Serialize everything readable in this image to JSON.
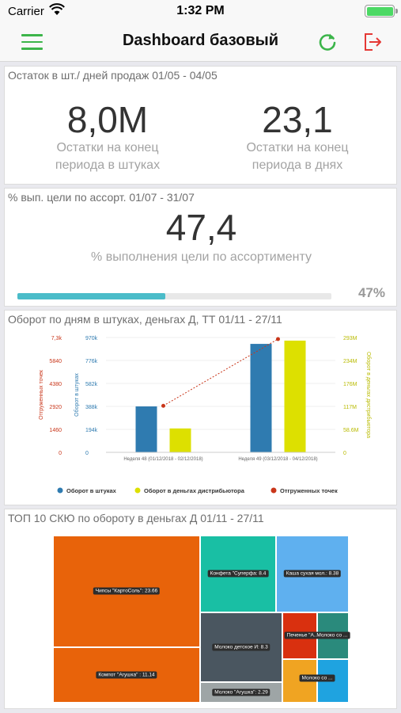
{
  "status": {
    "carrier": "Carrier",
    "time": "1:32 PM"
  },
  "nav": {
    "title": "Dashboard базовый",
    "menu_icon": "hamburger-menu-icon",
    "refresh_icon": "refresh-icon",
    "logout_icon": "logout-icon",
    "accent": "#3cb54a",
    "logout_color": "#e53935"
  },
  "stock": {
    "title": "Остаток в шт./ дней продаж 01/05 - 04/05",
    "left_value": "8,0M",
    "left_label_1": "Остатки на конец",
    "left_label_2": "периода в штуках",
    "right_value": "23,1",
    "right_label_1": "Остатки на конец",
    "right_label_2": "периода в днях"
  },
  "assort": {
    "title": "% вып. цели по ассорт. 01/07 - 31/07",
    "value": "47,4",
    "label": "% выполнения цели по ассортименту",
    "progress": 0.47,
    "progress_text": "47%",
    "bar_color": "#4bbcc9"
  },
  "turnover": {
    "title": "Оборот по дням в штуках, деньгах Д, ТТ 01/11 - 27/11",
    "left_axis_ticks": [
      "7,3k",
      "5840",
      "4380",
      "2920",
      "1460",
      "0"
    ],
    "left_axis_title": "Отгруженных точек",
    "mid_axis_ticks": [
      "970k",
      "776k",
      "582k",
      "388k",
      "194k",
      "0"
    ],
    "mid_axis_title": "Оборот в штуках",
    "right_axis_ticks": [
      "293M",
      "234M",
      "176M",
      "117M",
      "58.6M",
      "0"
    ],
    "right_axis_title": "Оборот в деньгах дистрибьютора",
    "legend": {
      "units": "Оборот в штуках",
      "money": "Оборот в деньгах дистрибьютора",
      "points": "Отгруженных точек"
    },
    "colors": {
      "units": "#2f7bb0",
      "money": "#dde000",
      "points": "#c9361a"
    }
  },
  "chart_data": {
    "type": "bar",
    "categories": [
      "Неделя 48 (01/12/2018 - 02/12/2018)",
      "Неделя 49 (03/12/2018 - 04/12/2018)"
    ],
    "series": [
      {
        "name": "Оборот в штуках",
        "axis": "mid",
        "values": [
          388000,
          916000
        ]
      },
      {
        "name": "Оборот в деньгах дистрибьютора",
        "axis": "right",
        "values": [
          61000000,
          285000000
        ]
      },
      {
        "name": "Отгруженных точек",
        "type": "line",
        "axis": "left",
        "values": [
          2960,
          7200
        ]
      }
    ],
    "axes": {
      "left": {
        "range": [
          0,
          7300
        ]
      },
      "mid": {
        "range": [
          0,
          970000
        ]
      },
      "right": {
        "range": [
          0,
          293000000
        ]
      }
    },
    "legend_position": "bottom",
    "grid": true
  },
  "top10": {
    "title": "ТОП 10 СКЮ по обороту в деньгах Д 01/11 - 27/11",
    "items": [
      {
        "label": "Чипсы \"КартоСоль\": 23.66",
        "color": "#e8630a"
      },
      {
        "label": "Компот \"Агушка\" : 11.14",
        "color": "#e8630a"
      },
      {
        "label": "Конфета \"Суперфа: 8.4",
        "color": "#19bfa4"
      },
      {
        "label": "Каша сухая мол.: 8.38",
        "color": "#5fb0ef"
      },
      {
        "label": "Молоко детское И: 8.3",
        "color": "#4a5660"
      },
      {
        "label": "Печенье \"А..Молоко со ...",
        "color": "#d9300f"
      },
      {
        "label": "Молоко со ...",
        "color": "#2a8a7c"
      },
      {
        "label": "Молоко \"Агушка\": 2.29",
        "color": "#9ea5a6"
      }
    ]
  }
}
